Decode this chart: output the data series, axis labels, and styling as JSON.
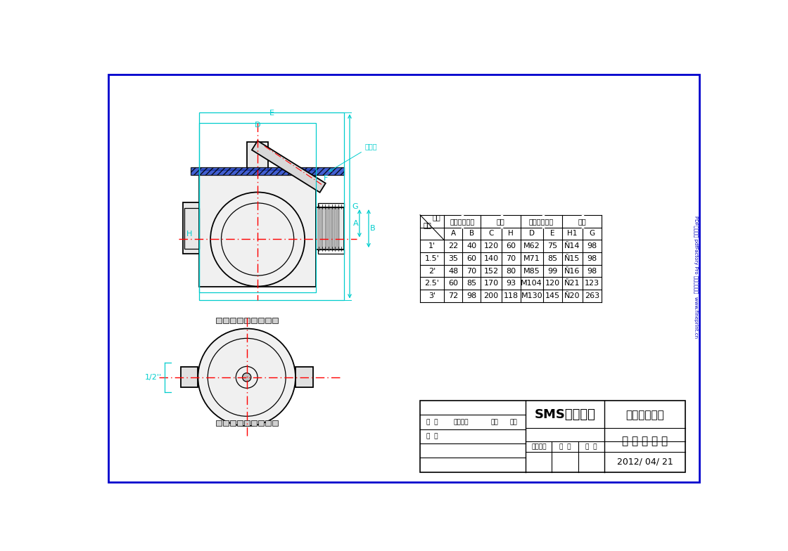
{
  "bg_color": "#ffffff",
  "border_color": "#0000cd",
  "dc": "#000000",
  "cc": "#00cdcd",
  "rc": "#ff0000",
  "table_headers_top": [
    "尺寸",
    "管口（素糖）",
    "阀体",
    "法兰（螺帽）",
    "手柄"
  ],
  "table_subheaders": [
    "阀体",
    "A",
    "B",
    "C",
    "H",
    "D",
    "E",
    "H1",
    "G"
  ],
  "table_data": [
    [
      "1'",
      "22",
      "40",
      "120",
      "60",
      "M62",
      "75",
      "Ň14",
      "98"
    ],
    [
      "1.5'",
      "35",
      "60",
      "140",
      "70",
      "M71",
      "85",
      "Ň15",
      "98"
    ],
    [
      "2'",
      "48",
      "70",
      "152",
      "80",
      "M85",
      "99",
      "Ň16",
      "98"
    ],
    [
      "2.5'",
      "60",
      "85",
      "170",
      "93",
      "M104",
      "120",
      "Ň21",
      "123"
    ],
    [
      "3'",
      "72",
      "98",
      "200",
      "118",
      "M130",
      "145",
      "Ň20",
      "263"
    ]
  ],
  "company": "温州兴生阀门",
  "product": "三 通 旋 塞 阀",
  "standard": "SMS螺纹标准",
  "date": "2012/ 04/ 21",
  "annotation": "弹性圈",
  "half_label": "1/2''",
  "side_text": "PDF文件使用 pdfFactory Pro 试用版本创建  www.fineprint.cn",
  "label_biaoji": "标  记",
  "label_gengai": "更改文件",
  "label_qianzi": "签字",
  "label_riqi": "日期",
  "label_sheji": "设  计",
  "label_tubiao": "图样标记",
  "label_zhongliang": "重  量",
  "label_bili": "比  例",
  "label_chicun": "尺寸",
  "label_fatikuangtou": "阀体"
}
